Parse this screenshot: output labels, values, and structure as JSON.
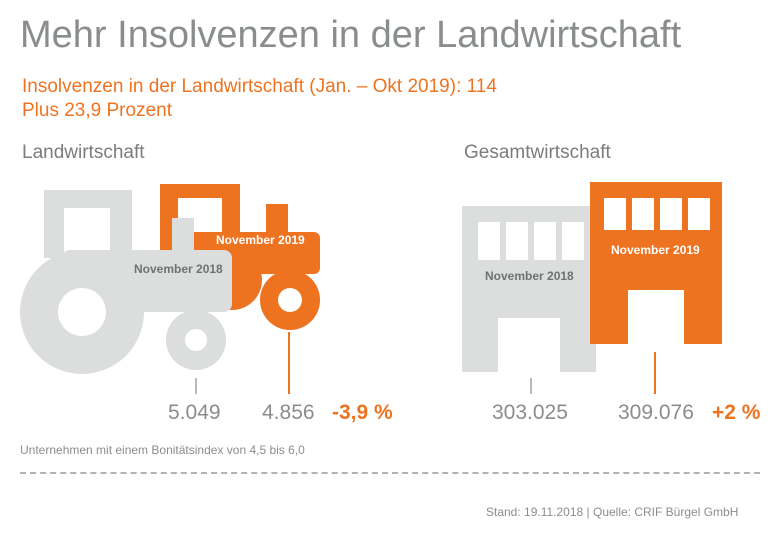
{
  "title": "Mehr Insolvenzen in der Landwirtschaft",
  "subtitle_line1": "Insolvenzen in der Landwirtschaft (Jan. – Okt 2019): 114",
  "subtitle_line2": "Plus 23,9 Prozent",
  "sections": {
    "agriculture": {
      "heading": "Landwirtschaft",
      "label_2018": "November 2018",
      "label_2019": "November 2019",
      "value_2018": "5.049",
      "value_2019": "4.856",
      "change": "-3,9 %",
      "icon": "tractor-icon"
    },
    "economy": {
      "heading": "Gesamtwirtschaft",
      "label_2018": "November 2018",
      "label_2019": "November 2019",
      "value_2018": "303.025",
      "value_2019": "309.076",
      "change": "+2 %",
      "icon": "building-icon"
    }
  },
  "footnote": "Unternehmen mit einem Bonitätsindex von 4,5 bis 6,0",
  "source": "Stand: 19.11.2018 | Quelle: CRIF Bürgel GmbH",
  "colors": {
    "orange": "#ee7320",
    "gray": "#dcdedd",
    "text_gray": "#8a8d8e"
  }
}
